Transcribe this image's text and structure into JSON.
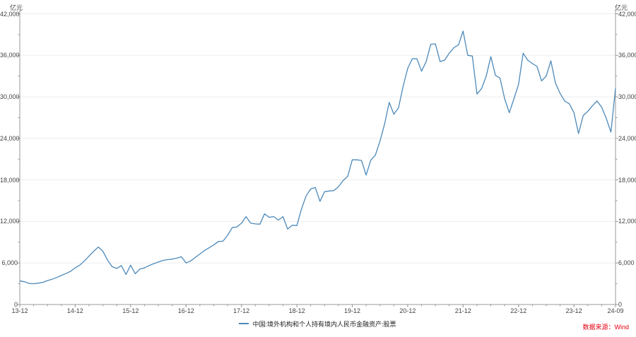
{
  "page": {
    "background": "#ffffff"
  },
  "chart": {
    "unit_label_left": "亿元",
    "unit_label_right": "亿元",
    "source_label": "数据来源：Wind",
    "source_color": "#e60012",
    "axis_color": "#999999",
    "grid_color": "#ededed",
    "label_color": "#444444"
  },
  "chart_data": {
    "type": "line",
    "title": "",
    "xlabel": "",
    "ylabel": "亿元",
    "grid": true,
    "legend_position": "bottom",
    "y_axis": {
      "min": 0,
      "max": 42000,
      "major_step": 6000,
      "minor_step": 3000,
      "tick_labels": [
        "0",
        "6,000",
        "12,000",
        "18,000",
        "24,000",
        "30,000",
        "36,000",
        "42,000"
      ]
    },
    "x_axis": {
      "tick_labels": [
        "13-12",
        "14-12",
        "15-12",
        "16-12",
        "17-12",
        "18-12",
        "19-12",
        "20-12",
        "21-12",
        "22-12",
        "23-12",
        "24-09"
      ],
      "tick_indices": [
        0,
        12,
        24,
        36,
        48,
        60,
        72,
        84,
        96,
        108,
        120,
        129
      ],
      "minor_tick_every_points": 3
    },
    "x": [
      "2013-12",
      "2014-01",
      "2014-02",
      "2014-03",
      "2014-04",
      "2014-05",
      "2014-06",
      "2014-07",
      "2014-08",
      "2014-09",
      "2014-10",
      "2014-11",
      "2014-12",
      "2015-01",
      "2015-02",
      "2015-03",
      "2015-04",
      "2015-05",
      "2015-06",
      "2015-07",
      "2015-08",
      "2015-09",
      "2015-10",
      "2015-11",
      "2015-12",
      "2016-01",
      "2016-02",
      "2016-03",
      "2016-04",
      "2016-05",
      "2016-06",
      "2016-07",
      "2016-08",
      "2016-09",
      "2016-10",
      "2016-11",
      "2016-12",
      "2017-01",
      "2017-02",
      "2017-03",
      "2017-04",
      "2017-05",
      "2017-06",
      "2017-07",
      "2017-08",
      "2017-09",
      "2017-10",
      "2017-11",
      "2017-12",
      "2018-01",
      "2018-02",
      "2018-03",
      "2018-04",
      "2018-05",
      "2018-06",
      "2018-07",
      "2018-08",
      "2018-09",
      "2018-10",
      "2018-11",
      "2018-12",
      "2019-01",
      "2019-02",
      "2019-03",
      "2019-04",
      "2019-05",
      "2019-06",
      "2019-07",
      "2019-08",
      "2019-09",
      "2019-10",
      "2019-11",
      "2019-12",
      "2020-01",
      "2020-02",
      "2020-03",
      "2020-04",
      "2020-05",
      "2020-06",
      "2020-07",
      "2020-08",
      "2020-09",
      "2020-10",
      "2020-11",
      "2020-12",
      "2021-01",
      "2021-02",
      "2021-03",
      "2021-04",
      "2021-05",
      "2021-06",
      "2021-07",
      "2021-08",
      "2021-09",
      "2021-10",
      "2021-11",
      "2021-12",
      "2022-01",
      "2022-02",
      "2022-03",
      "2022-04",
      "2022-05",
      "2022-06",
      "2022-07",
      "2022-08",
      "2022-09",
      "2022-10",
      "2022-11",
      "2022-12",
      "2023-01",
      "2023-02",
      "2023-03",
      "2023-04",
      "2023-05",
      "2023-06",
      "2023-07",
      "2023-08",
      "2023-09",
      "2023-10",
      "2023-11",
      "2023-12",
      "2024-01",
      "2024-02",
      "2024-03",
      "2024-04",
      "2024-05",
      "2024-06",
      "2024-07",
      "2024-08",
      "2024-09"
    ],
    "series": [
      {
        "name": "中国:境外机构和个人持有境内人民币金融资产:股票",
        "color": "#4d89b9",
        "values": [
          3400,
          3300,
          3050,
          3000,
          3080,
          3200,
          3460,
          3650,
          3900,
          4200,
          4470,
          4800,
          5300,
          5700,
          6300,
          7000,
          7700,
          8300,
          7700,
          6400,
          5460,
          5220,
          5620,
          4340,
          5690,
          4440,
          5120,
          5290,
          5620,
          5900,
          6130,
          6370,
          6480,
          6550,
          6700,
          6900,
          6000,
          6300,
          6800,
          7300,
          7800,
          8200,
          8600,
          9100,
          9150,
          10000,
          11100,
          11200,
          11750,
          12700,
          11750,
          11650,
          11600,
          13100,
          12600,
          12700,
          12200,
          12700,
          10900,
          11450,
          11400,
          13800,
          15700,
          16700,
          16900,
          14900,
          16300,
          16400,
          16450,
          17000,
          17900,
          18500,
          20900,
          20900,
          20800,
          18700,
          20850,
          21600,
          23600,
          26100,
          29200,
          27500,
          28400,
          31500,
          34100,
          35500,
          35500,
          33700,
          35100,
          37600,
          37650,
          35100,
          35300,
          36300,
          37100,
          37500,
          39500,
          36000,
          35900,
          30400,
          31200,
          33000,
          35800,
          33100,
          32700,
          29700,
          27700,
          29700,
          31800,
          36300,
          35300,
          34800,
          34400,
          32300,
          33000,
          35200,
          32000,
          30500,
          29400,
          29000,
          27700,
          24700,
          27300,
          27900,
          28700,
          29400,
          28500,
          26900,
          24900,
          31200
        ]
      }
    ]
  }
}
